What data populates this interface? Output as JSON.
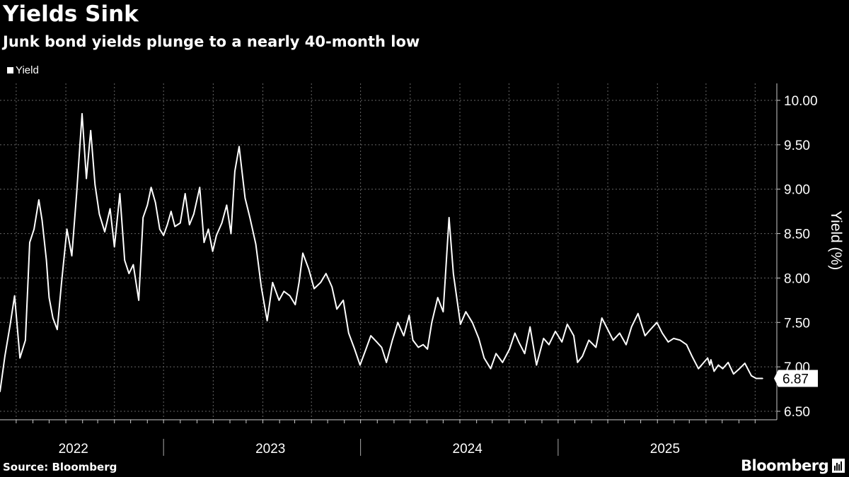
{
  "header": {
    "title": "Yields Sink",
    "subtitle": "Junk bond yields plunge to a nearly 40-month low"
  },
  "legend": {
    "label": "Yield"
  },
  "footer": {
    "source": "Source: Bloomberg",
    "brand": "Bloomberg",
    "brand_icon": "bloomberg-terminal-icon"
  },
  "colors": {
    "background": "#000000",
    "line": "#ffffff",
    "grid": "#666666",
    "text": "#ffffff"
  },
  "chart_data": {
    "type": "line",
    "title": "Yields Sink",
    "subtitle": "Junk bond yields plunge to a nearly 40-month low",
    "ylabel": "Yield (%)",
    "xlabel": "",
    "ylim": [
      6.5,
      10.0
    ],
    "yticks": [
      "6.50",
      "7.00",
      "7.50",
      "8.00",
      "8.50",
      "9.00",
      "9.50",
      "10.00"
    ],
    "yaxis_position": "right",
    "grid": true,
    "legend_position": "top-left",
    "x_tick_labels": [
      "2022",
      "2023",
      "2024",
      "2025"
    ],
    "last_value_label": "6.87",
    "series": [
      {
        "name": "Yield",
        "x": [
          "2021-09-01",
          "2021-09-10",
          "2021-09-20",
          "2021-09-28",
          "2021-10-08",
          "2021-10-18",
          "2021-10-26",
          "2021-11-03",
          "2021-11-12",
          "2021-11-18",
          "2021-11-26",
          "2021-12-01",
          "2021-12-08",
          "2021-12-16",
          "2021-12-24",
          "2022-01-03",
          "2022-01-12",
          "2022-01-21",
          "2022-01-31",
          "2022-02-08",
          "2022-02-16",
          "2022-02-24",
          "2022-03-04",
          "2022-03-14",
          "2022-03-24",
          "2022-04-01",
          "2022-04-11",
          "2022-04-20",
          "2022-04-28",
          "2022-05-06",
          "2022-05-16",
          "2022-05-24",
          "2022-06-01",
          "2022-06-08",
          "2022-06-16",
          "2022-06-24",
          "2022-07-01",
          "2022-07-08",
          "2022-07-15",
          "2022-07-22",
          "2022-08-01",
          "2022-08-10",
          "2022-08-18",
          "2022-08-26",
          "2022-09-06",
          "2022-09-14",
          "2022-09-22",
          "2022-09-30",
          "2022-10-07",
          "2022-10-17",
          "2022-10-26",
          "2022-11-03",
          "2022-11-10",
          "2022-11-18",
          "2022-11-29",
          "2022-12-08",
          "2022-12-19",
          "2022-12-29",
          "2023-01-09",
          "2023-01-19",
          "2023-01-31",
          "2023-02-09",
          "2023-02-20",
          "2023-03-02",
          "2023-03-09",
          "2023-03-16",
          "2023-03-27",
          "2023-04-06",
          "2023-04-18",
          "2023-04-28",
          "2023-05-09",
          "2023-05-18",
          "2023-05-30",
          "2023-06-09",
          "2023-06-20",
          "2023-06-30",
          "2023-07-11",
          "2023-07-20",
          "2023-07-31",
          "2023-08-09",
          "2023-08-18",
          "2023-08-29",
          "2023-09-08",
          "2023-09-19",
          "2023-09-29",
          "2023-10-06",
          "2023-10-16",
          "2023-10-25",
          "2023-11-02",
          "2023-11-10",
          "2023-11-21",
          "2023-12-01",
          "2023-12-12",
          "2023-12-20",
          "2024-01-02",
          "2024-01-12",
          "2024-01-24",
          "2024-02-05",
          "2024-02-15",
          "2024-02-27",
          "2024-03-08",
          "2024-03-20",
          "2024-04-02",
          "2024-04-12",
          "2024-04-19",
          "2024-04-30",
          "2024-05-10",
          "2024-05-22",
          "2024-06-04",
          "2024-06-14",
          "2024-06-26",
          "2024-07-08",
          "2024-07-18",
          "2024-07-30",
          "2024-08-06",
          "2024-08-15",
          "2024-08-27",
          "2024-09-09",
          "2024-09-20",
          "2024-10-01",
          "2024-10-11",
          "2024-10-23",
          "2024-11-04",
          "2024-11-14",
          "2024-11-26",
          "2024-12-09",
          "2024-12-19",
          "2024-12-31",
          "2025-01-10",
          "2025-01-21",
          "2025-01-31",
          "2025-02-12",
          "2025-02-24",
          "2025-03-06",
          "2025-03-18",
          "2025-03-28",
          "2025-04-04",
          "2025-04-08",
          "2025-04-10",
          "2025-04-16",
          "2025-04-24",
          "2025-05-02",
          "2025-05-12",
          "2025-05-22",
          "2025-06-02",
          "2025-06-12",
          "2025-06-24",
          "2025-07-03",
          "2025-07-11",
          "2025-07-15"
        ],
        "y": [
          6.72,
          7.12,
          7.48,
          7.8,
          7.1,
          7.3,
          8.4,
          8.55,
          8.88,
          8.65,
          8.2,
          7.78,
          7.55,
          7.42,
          7.95,
          8.55,
          8.25,
          8.95,
          9.85,
          9.12,
          9.66,
          9.05,
          8.72,
          8.52,
          8.78,
          8.35,
          8.95,
          8.2,
          8.05,
          8.15,
          7.75,
          8.68,
          8.82,
          9.02,
          8.85,
          8.55,
          8.48,
          8.6,
          8.75,
          8.58,
          8.62,
          8.95,
          8.6,
          8.72,
          9.02,
          8.4,
          8.55,
          8.3,
          8.48,
          8.62,
          8.82,
          8.5,
          9.2,
          9.48,
          8.9,
          8.68,
          8.38,
          7.9,
          7.52,
          7.95,
          7.75,
          7.85,
          7.8,
          7.7,
          7.95,
          8.28,
          8.1,
          7.88,
          7.95,
          8.05,
          7.9,
          7.65,
          7.75,
          7.38,
          7.2,
          7.02,
          7.2,
          7.35,
          7.28,
          7.22,
          7.05,
          7.3,
          7.5,
          7.35,
          7.58,
          7.3,
          7.22,
          7.25,
          7.2,
          7.5,
          7.78,
          7.62,
          8.68,
          8.05,
          7.48,
          7.62,
          7.5,
          7.32,
          7.1,
          6.98,
          7.15,
          7.05,
          7.2,
          7.38,
          7.28,
          7.15,
          7.45,
          7.02,
          7.32,
          7.25,
          7.4,
          7.28,
          7.48,
          7.35,
          7.05,
          7.12,
          7.3,
          7.22,
          7.55,
          7.42,
          7.3,
          7.38,
          7.25,
          7.45,
          7.6,
          7.35,
          7.42,
          7.5,
          7.38,
          7.28,
          7.32,
          7.3,
          7.25,
          7.12,
          6.98,
          7.05,
          7.1,
          7.02,
          7.08,
          6.95,
          7.02,
          6.98,
          7.05,
          6.92,
          6.98,
          7.04,
          6.9,
          6.87,
          6.87,
          6.87
        ]
      }
    ]
  }
}
